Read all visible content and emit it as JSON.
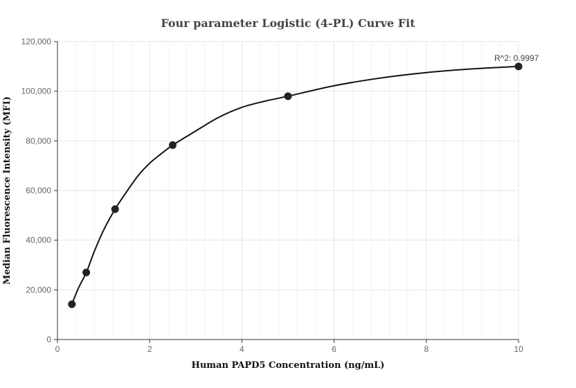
{
  "chart_data": {
    "type": "scatter",
    "title": "Four parameter Logistic (4-PL) Curve Fit",
    "xlabel": "Human PAPD5 Concentration (ng/mL)",
    "ylabel": "Median Fluorescence Intensity (MFI)",
    "xlim": [
      0,
      10
    ],
    "ylim": [
      0,
      120000
    ],
    "x_ticks": [
      0,
      2,
      4,
      6,
      8,
      10
    ],
    "x_tick_labels": [
      "0",
      "2",
      "4",
      "6",
      "8",
      "10"
    ],
    "y_ticks": [
      0,
      20000,
      40000,
      60000,
      80000,
      100000,
      120000
    ],
    "y_tick_labels": [
      "0",
      "20,000",
      "40,000",
      "60,000",
      "80,000",
      "100,000",
      "120,000"
    ],
    "grid": true,
    "series": [
      {
        "points": [
          {
            "x": 0.3125,
            "y": 14200
          },
          {
            "x": 0.625,
            "y": 27000
          },
          {
            "x": 1.25,
            "y": 52500
          },
          {
            "x": 2.5,
            "y": 78300
          },
          {
            "x": 5,
            "y": 98000
          },
          {
            "x": 10,
            "y": 110000
          }
        ]
      }
    ],
    "fit_curve": {
      "points": [
        {
          "x": 0.3125,
          "y": 14200
        },
        {
          "x": 0.45,
          "y": 20500
        },
        {
          "x": 0.625,
          "y": 27000
        },
        {
          "x": 0.8,
          "y": 35500
        },
        {
          "x": 1.0,
          "y": 44000
        },
        {
          "x": 1.25,
          "y": 52500
        },
        {
          "x": 1.5,
          "y": 59500
        },
        {
          "x": 1.75,
          "y": 66000
        },
        {
          "x": 2.0,
          "y": 71000
        },
        {
          "x": 2.25,
          "y": 74800
        },
        {
          "x": 2.5,
          "y": 78300
        },
        {
          "x": 3.0,
          "y": 84000
        },
        {
          "x": 3.5,
          "y": 89500
        },
        {
          "x": 4.0,
          "y": 93500
        },
        {
          "x": 4.5,
          "y": 96000
        },
        {
          "x": 5.0,
          "y": 98000
        },
        {
          "x": 6.0,
          "y": 102200
        },
        {
          "x": 7.0,
          "y": 105300
        },
        {
          "x": 8.0,
          "y": 107500
        },
        {
          "x": 9.0,
          "y": 109000
        },
        {
          "x": 10.0,
          "y": 110000
        }
      ]
    },
    "annotations": [
      {
        "text": "R^2: 0.9997",
        "x": 10,
        "y": 110000
      }
    ]
  }
}
